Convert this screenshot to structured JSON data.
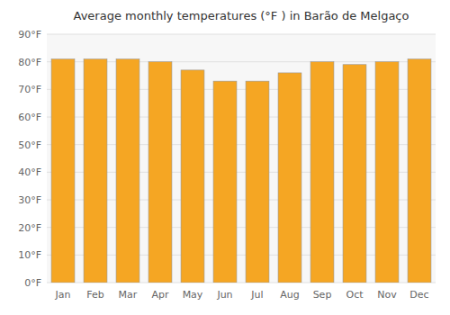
{
  "chart_data": {
    "type": "bar",
    "title": "Average monthly temperatures (°F ) in Barão de Melgaço",
    "categories": [
      "Jan",
      "Feb",
      "Mar",
      "Apr",
      "May",
      "Jun",
      "Jul",
      "Aug",
      "Sep",
      "Oct",
      "Nov",
      "Dec"
    ],
    "values": [
      81,
      81,
      81,
      80,
      77,
      73,
      73,
      76,
      80,
      79,
      80,
      81
    ],
    "color": "#f5a623",
    "ylim": [
      0,
      90
    ],
    "yticks": [
      {
        "value": 0,
        "label": "0°F"
      },
      {
        "value": 10,
        "label": "10°F"
      },
      {
        "value": 20,
        "label": "20°F"
      },
      {
        "value": 30,
        "label": "30°F"
      },
      {
        "value": 40,
        "label": "40°F"
      },
      {
        "value": 50,
        "label": "50°F"
      },
      {
        "value": 60,
        "label": "60°F"
      },
      {
        "value": 70,
        "label": "70°F"
      },
      {
        "value": 80,
        "label": "80°F"
      },
      {
        "value": 90,
        "label": "90°F"
      }
    ],
    "grid": true
  }
}
